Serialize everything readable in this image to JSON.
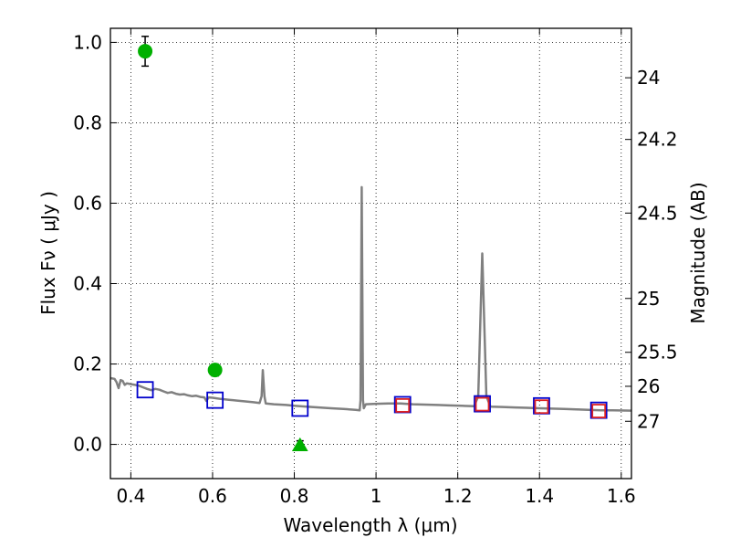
{
  "chart_data": {
    "type": "scatter",
    "xlabel": "Wavelength  λ (μm)",
    "ylabel": "Flux  Fν  ( μJy )",
    "y2label": "Magnitude (AB)",
    "xlim": [
      0.35,
      1.625
    ],
    "ylim": [
      -0.085,
      1.035
    ],
    "grid": true,
    "x_ticks": [
      {
        "v": 0.4,
        "label": "0.4"
      },
      {
        "v": 0.6,
        "label": "0.6"
      },
      {
        "v": 0.8,
        "label": "0.8"
      },
      {
        "v": 1.0,
        "label": "1"
      },
      {
        "v": 1.2,
        "label": "1.2"
      },
      {
        "v": 1.4,
        "label": "1.4"
      },
      {
        "v": 1.6,
        "label": "1.6"
      }
    ],
    "y_ticks": [
      {
        "v": 0.0,
        "label": "0.0"
      },
      {
        "v": 0.2,
        "label": "0.2"
      },
      {
        "v": 0.4,
        "label": "0.4"
      },
      {
        "v": 0.6,
        "label": "0.6"
      },
      {
        "v": 0.8,
        "label": "0.8"
      },
      {
        "v": 1.0,
        "label": "1.0"
      }
    ],
    "mag_ticks": [
      {
        "mag": 24,
        "label": "24"
      },
      {
        "mag": 24.2,
        "label": "24.2"
      },
      {
        "mag": 24.5,
        "label": "24.5"
      },
      {
        "mag": 25,
        "label": "25"
      },
      {
        "mag": 25.5,
        "label": "25.5"
      },
      {
        "mag": 26,
        "label": "26"
      },
      {
        "mag": 27,
        "label": "27"
      }
    ],
    "template_spectrum": {
      "color": "#808080",
      "points": [
        [
          0.35,
          0.165
        ],
        [
          0.36,
          0.163
        ],
        [
          0.365,
          0.155
        ],
        [
          0.37,
          0.14
        ],
        [
          0.375,
          0.16
        ],
        [
          0.38,
          0.158
        ],
        [
          0.385,
          0.148
        ],
        [
          0.39,
          0.152
        ],
        [
          0.4,
          0.15
        ],
        [
          0.41,
          0.148
        ],
        [
          0.42,
          0.146
        ],
        [
          0.43,
          0.142
        ],
        [
          0.44,
          0.138
        ],
        [
          0.45,
          0.135
        ],
        [
          0.46,
          0.138
        ],
        [
          0.47,
          0.136
        ],
        [
          0.48,
          0.132
        ],
        [
          0.49,
          0.128
        ],
        [
          0.5,
          0.13
        ],
        [
          0.51,
          0.126
        ],
        [
          0.52,
          0.124
        ],
        [
          0.53,
          0.125
        ],
        [
          0.54,
          0.122
        ],
        [
          0.55,
          0.12
        ],
        [
          0.56,
          0.121
        ],
        [
          0.57,
          0.118
        ],
        [
          0.58,
          0.117
        ],
        [
          0.585,
          0.108
        ],
        [
          0.59,
          0.117
        ],
        [
          0.6,
          0.116
        ],
        [
          0.62,
          0.113
        ],
        [
          0.64,
          0.111
        ],
        [
          0.66,
          0.109
        ],
        [
          0.68,
          0.107
        ],
        [
          0.7,
          0.105
        ],
        [
          0.715,
          0.103
        ],
        [
          0.72,
          0.12
        ],
        [
          0.723,
          0.185
        ],
        [
          0.727,
          0.12
        ],
        [
          0.73,
          0.102
        ],
        [
          0.75,
          0.1
        ],
        [
          0.78,
          0.098
        ],
        [
          0.8,
          0.096
        ],
        [
          0.83,
          0.094
        ],
        [
          0.86,
          0.092
        ],
        [
          0.89,
          0.09
        ],
        [
          0.92,
          0.088
        ],
        [
          0.95,
          0.086
        ],
        [
          0.96,
          0.085
        ],
        [
          0.962,
          0.11
        ],
        [
          0.965,
          0.64
        ],
        [
          0.968,
          0.11
        ],
        [
          0.97,
          0.09
        ],
        [
          0.975,
          0.1
        ],
        [
          1.0,
          0.101
        ],
        [
          1.03,
          0.102
        ],
        [
          1.06,
          0.102
        ],
        [
          1.09,
          0.1
        ],
        [
          1.12,
          0.099
        ],
        [
          1.15,
          0.098
        ],
        [
          1.18,
          0.097
        ],
        [
          1.21,
          0.096
        ],
        [
          1.24,
          0.095
        ],
        [
          1.25,
          0.12
        ],
        [
          1.26,
          0.475
        ],
        [
          1.27,
          0.12
        ],
        [
          1.28,
          0.094
        ],
        [
          1.31,
          0.093
        ],
        [
          1.34,
          0.092
        ],
        [
          1.37,
          0.091
        ],
        [
          1.4,
          0.09
        ],
        [
          1.43,
          0.089
        ],
        [
          1.46,
          0.088
        ],
        [
          1.49,
          0.087
        ],
        [
          1.52,
          0.086
        ],
        [
          1.55,
          0.085
        ],
        [
          1.58,
          0.085
        ],
        [
          1.625,
          0.084
        ]
      ]
    },
    "series": [
      {
        "marker": "circle",
        "color": "#00b000",
        "points": [
          {
            "x": 0.435,
            "y": 0.978,
            "err": 0.037
          },
          {
            "x": 0.606,
            "y": 0.185,
            "err": 0.015
          }
        ]
      },
      {
        "marker": "triangle",
        "color": "#00b000",
        "points": [
          {
            "x": 0.814,
            "y": -0.003,
            "err": 0.012
          }
        ]
      },
      {
        "marker": "square",
        "color": "#0000cc",
        "points": [
          {
            "x": 0.435,
            "y": 0.136
          },
          {
            "x": 0.606,
            "y": 0.11
          },
          {
            "x": 0.814,
            "y": 0.09
          },
          {
            "x": 1.065,
            "y": 0.099
          },
          {
            "x": 1.26,
            "y": 0.101
          },
          {
            "x": 1.405,
            "y": 0.096
          },
          {
            "x": 1.545,
            "y": 0.085
          }
        ]
      },
      {
        "marker": "square",
        "color": "#dd2222",
        "points": [
          {
            "x": 1.065,
            "y": 0.097
          },
          {
            "x": 1.26,
            "y": 0.1
          },
          {
            "x": 1.405,
            "y": 0.094
          },
          {
            "x": 1.545,
            "y": 0.083
          }
        ]
      }
    ]
  }
}
